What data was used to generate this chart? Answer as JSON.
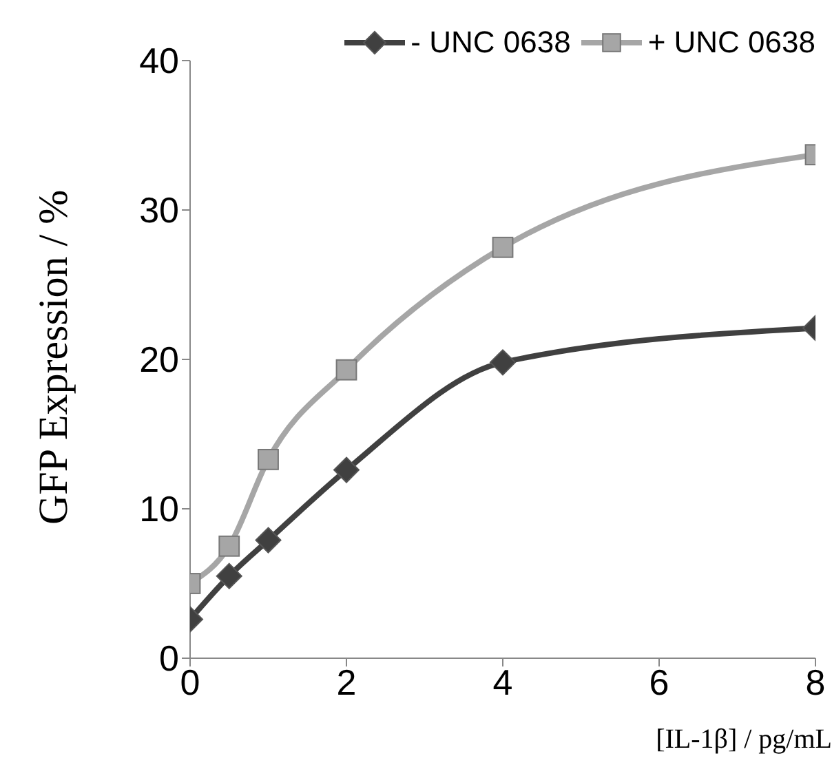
{
  "chart_data": {
    "type": "line",
    "xlabel": "[IL-1β] / pg/mL",
    "ylabel": "GFP Expression / %",
    "x": [
      0,
      0.5,
      1,
      2,
      4,
      8
    ],
    "xlim": [
      0,
      8
    ],
    "xticks": [
      0,
      2,
      4,
      6,
      8
    ],
    "ylim": [
      0,
      40
    ],
    "yticks": [
      0,
      10,
      20,
      30,
      40
    ],
    "grid": false,
    "legend": "top right",
    "series": [
      {
        "name": "- UNC 0638",
        "color": "#404040",
        "marker": "diamond",
        "values": [
          2.6,
          5.5,
          7.9,
          12.6,
          19.8,
          22.1
        ]
      },
      {
        "name": "+ UNC 0638",
        "color": "#a6a6a6",
        "marker": "square",
        "values": [
          5.0,
          7.5,
          13.3,
          19.3,
          27.5,
          33.7
        ]
      }
    ]
  }
}
